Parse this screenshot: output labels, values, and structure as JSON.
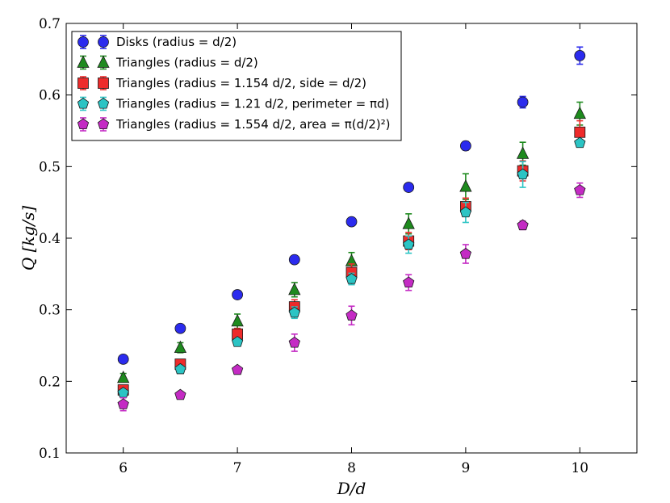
{
  "chart_data": {
    "type": "scatter",
    "title": "",
    "xlabel": "D/d",
    "ylabel": "Q [kg/s]",
    "xlim": [
      5.5,
      10.5
    ],
    "ylim": [
      0.1,
      0.7
    ],
    "xticks": [
      6,
      7,
      8,
      9,
      10
    ],
    "yticks": [
      0.1,
      0.2,
      0.3,
      0.4,
      0.5,
      0.6,
      0.7
    ],
    "xtick_labels": [
      "6",
      "7",
      "8",
      "9",
      "10"
    ],
    "ytick_labels": [
      "0.1",
      "0.2",
      "0.3",
      "0.4",
      "0.5",
      "0.6",
      "0.7"
    ],
    "grid": false,
    "legend_position": "top-left",
    "x": [
      6,
      6.5,
      7,
      7.5,
      8,
      8.5,
      9,
      9.5,
      10
    ],
    "series": [
      {
        "name": "Disks (radius = d/2)",
        "marker": "circle",
        "color": "#2b2bee",
        "values": [
          0.231,
          0.274,
          0.321,
          0.37,
          0.423,
          0.471,
          0.529,
          0.59,
          0.655
        ],
        "errors": [
          0.005,
          0.005,
          0.005,
          0.005,
          0.005,
          0.005,
          0.006,
          0.008,
          0.012
        ]
      },
      {
        "name": "Triangles (radius = d/2)",
        "marker": "triangle",
        "color": "#1e8a1e",
        "values": [
          0.205,
          0.247,
          0.284,
          0.328,
          0.368,
          0.42,
          0.472,
          0.518,
          0.574
        ],
        "errors": [
          0.006,
          0.007,
          0.01,
          0.01,
          0.012,
          0.014,
          0.018,
          0.016,
          0.016
        ]
      },
      {
        "name": "Triangles (radius = 1.154 d/2, side = d/2)",
        "marker": "square",
        "color": "#ee2b2b",
        "values": [
          0.188,
          0.224,
          0.266,
          0.304,
          0.352,
          0.396,
          0.444,
          0.494,
          0.548
        ],
        "errors": [
          0.005,
          0.006,
          0.008,
          0.01,
          0.012,
          0.012,
          0.012,
          0.014,
          0.016
        ]
      },
      {
        "name": "Triangles (radius = 1.21 d/2, perimeter = πd)",
        "marker": "pentagon",
        "color": "#2bc4c4",
        "values": [
          0.184,
          0.217,
          0.255,
          0.296,
          0.343,
          0.391,
          0.436,
          0.489,
          0.533
        ],
        "errors": [
          0.005,
          0.005,
          0.005,
          0.008,
          0.008,
          0.012,
          0.014,
          0.018,
          0.005
        ]
      },
      {
        "name": "Triangles (radius = 1.554 d/2, area = π(d/2)²)",
        "marker": "pentagon",
        "color": "#c42bc4",
        "values": [
          0.168,
          0.181,
          0.216,
          0.254,
          0.292,
          0.338,
          0.378,
          0.418,
          0.467
        ],
        "errors": [
          0.009,
          0.003,
          0.003,
          0.012,
          0.013,
          0.011,
          0.013,
          0.006,
          0.01
        ]
      }
    ]
  }
}
